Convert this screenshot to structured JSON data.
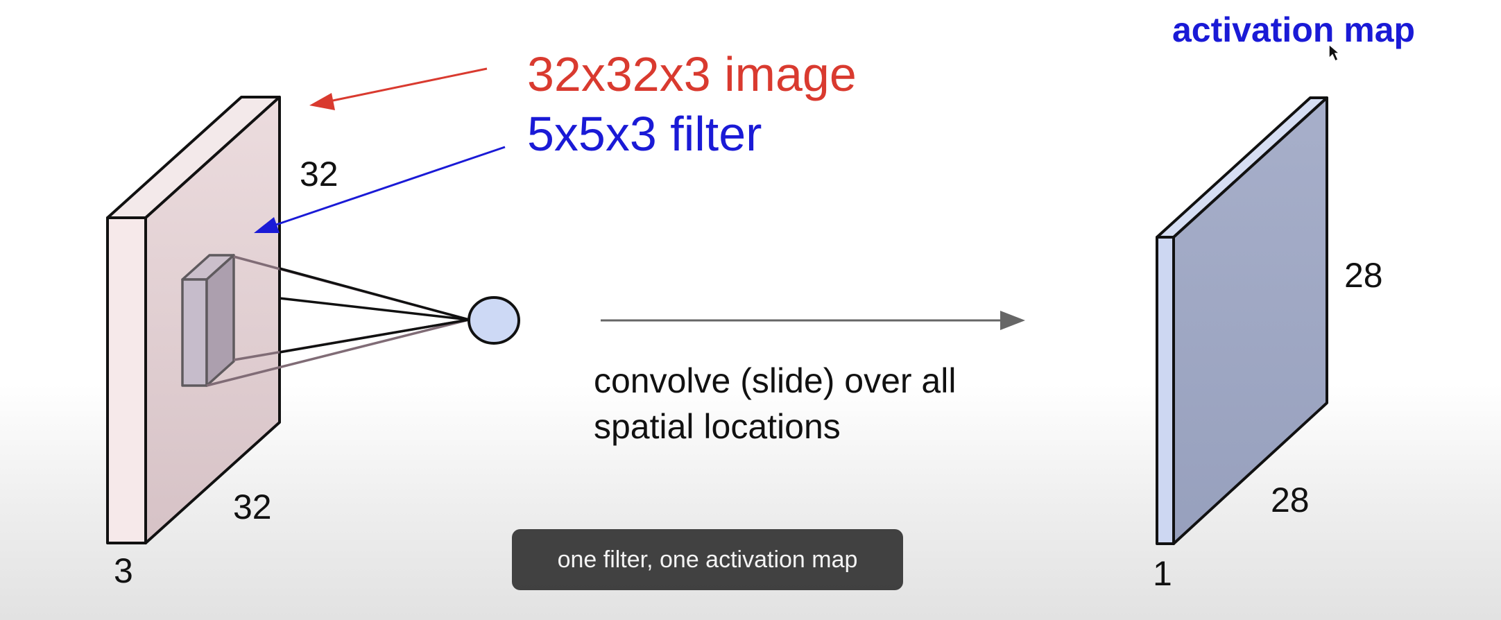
{
  "labels": {
    "image": "32x32x3 image",
    "filter": "5x5x3 filter",
    "activation_map": "activation map"
  },
  "input_volume": {
    "height": "32",
    "width": "32",
    "depth": "3"
  },
  "output_volume": {
    "height": "28",
    "width": "28",
    "depth": "1"
  },
  "description": {
    "line1": "convolve (slide) over all",
    "line2": "spatial locations"
  },
  "caption": "one filter, one activation map",
  "colors": {
    "image_label": "#d93a2f",
    "filter_label": "#1a1ad6",
    "input_face": "#e0ccd0",
    "output_face": "#a3abc6",
    "neuron": "#cdd9f5"
  },
  "icons": [
    "mouse-cursor-icon"
  ]
}
